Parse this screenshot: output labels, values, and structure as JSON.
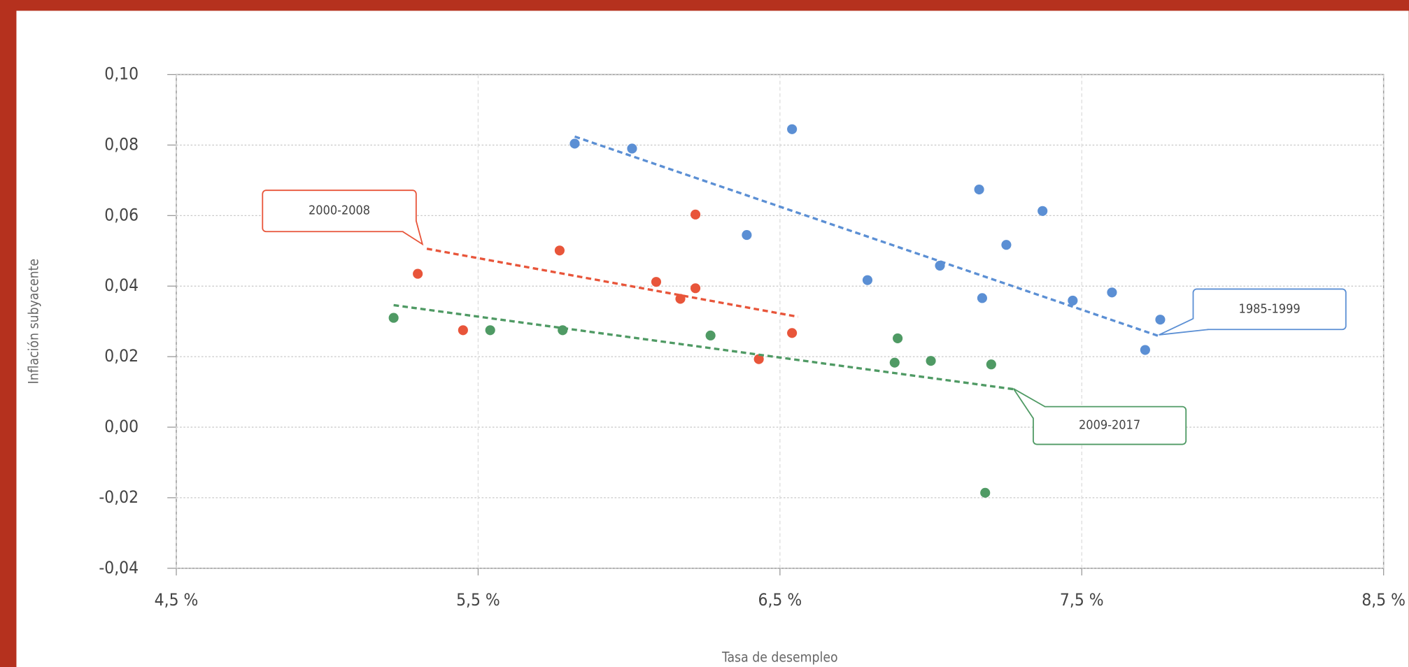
{
  "chart_data": {
    "type": "scatter",
    "x_label": "Tasa de desempleo",
    "y_label": "Inflación subyacente",
    "xlim": [
      4.5,
      8.5
    ],
    "ylim": [
      -0.04,
      0.1
    ],
    "xticks": [
      {
        "value": 4.5,
        "label": "4,5 %"
      },
      {
        "value": 5.5,
        "label": "5,5 %"
      },
      {
        "value": 6.5,
        "label": "6,5 %"
      },
      {
        "value": 7.5,
        "label": "7,5 %"
      },
      {
        "value": 8.5,
        "label": "8,5 %"
      }
    ],
    "yticks": [
      {
        "value": 0.1,
        "label": "0,10"
      },
      {
        "value": 0.08,
        "label": "0,08"
      },
      {
        "value": 0.06,
        "label": "0,06"
      },
      {
        "value": 0.04,
        "label": "0,04"
      },
      {
        "value": 0.02,
        "label": "0,02"
      },
      {
        "value": 0.0,
        "label": "0,00"
      },
      {
        "value": -0.02,
        "label": "-0,02"
      },
      {
        "value": -0.04,
        "label": "-0,04"
      }
    ],
    "grid": true,
    "series": [
      {
        "name": "1985-1999",
        "color": "#5b8fd4",
        "x": [
          5.82,
          6.01,
          6.54,
          6.39,
          6.79,
          7.03,
          7.16,
          7.17,
          7.25,
          7.37,
          7.47,
          7.6,
          7.71,
          7.76
        ],
        "values": [
          0.0804,
          0.079,
          0.0845,
          0.0545,
          0.0417,
          0.0458,
          0.0674,
          0.0366,
          0.0517,
          0.0613,
          0.0359,
          0.0382,
          0.0219,
          0.0305
        ],
        "trend": {
          "x": [
            5.82,
            7.76
          ],
          "values": [
            0.0824,
            0.0257
          ]
        }
      },
      {
        "name": "2000-2008",
        "color": "#e8553a",
        "x": [
          5.3,
          5.45,
          5.77,
          6.09,
          6.17,
          6.22,
          6.22,
          6.43,
          6.54
        ],
        "values": [
          0.0435,
          0.0275,
          0.0501,
          0.0412,
          0.0364,
          0.0603,
          0.0394,
          0.0193,
          0.0267
        ],
        "trend": {
          "x": [
            5.33,
            6.56
          ],
          "values": [
            0.0506,
            0.0313
          ]
        }
      },
      {
        "name": "2009-2017",
        "color": "#4f9a64",
        "x": [
          5.22,
          5.54,
          5.78,
          6.27,
          6.89,
          6.88,
          7.0,
          7.2,
          7.18
        ],
        "values": [
          0.031,
          0.0275,
          0.0275,
          0.026,
          0.0252,
          0.0183,
          0.0188,
          0.0178,
          -0.0186
        ],
        "trend": {
          "x": [
            5.22,
            7.28
          ],
          "values": [
            0.0346,
            0.0107
          ]
        }
      }
    ]
  }
}
